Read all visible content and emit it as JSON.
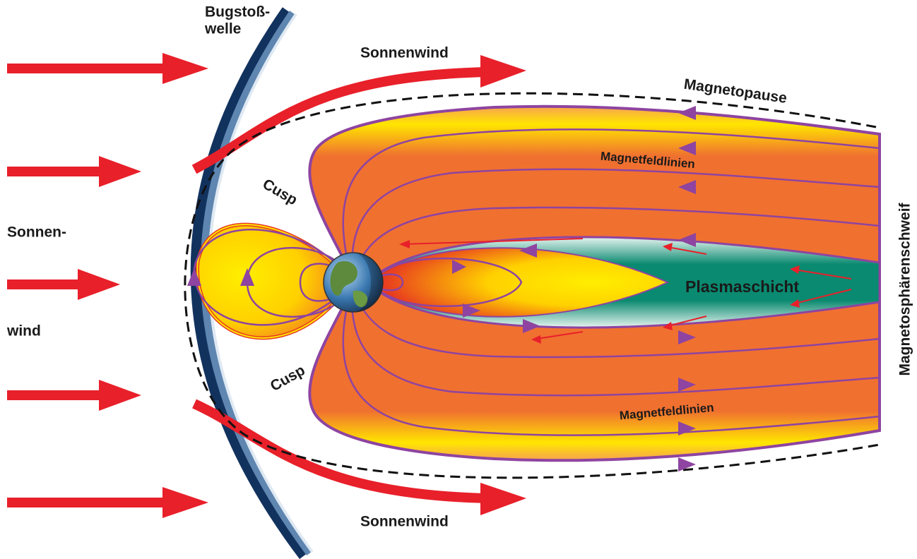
{
  "labels": {
    "bow_shock": [
      "Bugstoß-",
      "welle"
    ],
    "solar_wind_left": [
      "Sonnen-",
      "wind"
    ],
    "solar_wind_top": "Sonnenwind",
    "solar_wind_bottom": "Sonnenwind",
    "magnetopause": "Magnetopause",
    "field_lines_top": "Magnetfeldlinien",
    "field_lines_bottom": "Magnetfeldlinien",
    "tail": "Magnetosphärenschweif",
    "cusp_top": "Cusp",
    "cusp_bottom": "Cusp",
    "plasma_sheet": "Plasmaschicht"
  }
}
